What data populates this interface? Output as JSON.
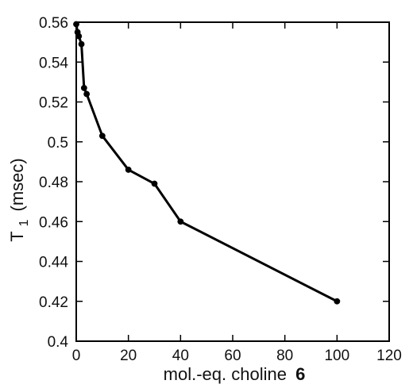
{
  "chart_data": {
    "type": "line",
    "x": [
      0,
      0.5,
      1,
      2,
      3,
      4,
      10,
      20,
      30,
      40,
      100
    ],
    "series": [
      {
        "values": [
          0.559,
          0.555,
          0.553,
          0.549,
          0.527,
          0.524,
          0.503,
          0.486,
          0.479,
          0.46,
          0.42
        ]
      }
    ],
    "xlabel": {
      "prefix": "mol.-eq. choline",
      "suffix": "6"
    },
    "ylabel": {
      "main": "T",
      "sub": "1",
      "unit": "(msec)"
    },
    "xlim": [
      0,
      120
    ],
    "ylim": [
      0.4,
      0.56
    ],
    "xticks": [
      "0",
      "20",
      "40",
      "60",
      "80",
      "100",
      "120"
    ],
    "yticks": [
      "0.4",
      "0.42",
      "0.44",
      "0.46",
      "0.48",
      "0.5",
      "0.52",
      "0.54",
      "0.56"
    ],
    "grid": false,
    "legend": "none",
    "line_color": "#000000",
    "marker": "filled-circle"
  }
}
